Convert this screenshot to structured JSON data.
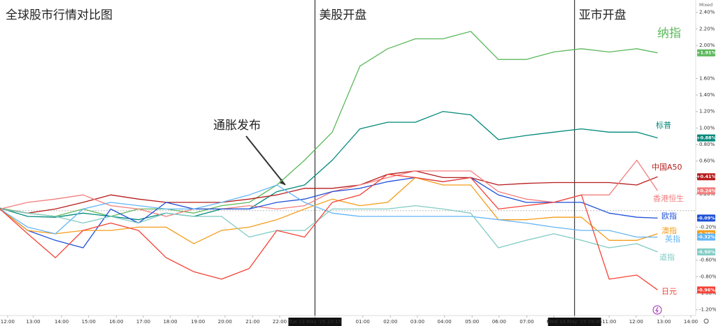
{
  "chart_data": {
    "type": "line",
    "title": "全球股市行情对比图",
    "scale_mode": "Mixed",
    "annotations": [
      {
        "text": "美股开盘",
        "x": 45.5
      },
      {
        "text": "亚市开盘",
        "x": 83.0
      },
      {
        "text": "通胀发布",
        "x": 41.2,
        "y": 0.31
      }
    ],
    "x": [
      0,
      4,
      8,
      12,
      16,
      20,
      24,
      28,
      32,
      36,
      40,
      44,
      48,
      52,
      56,
      60,
      64,
      68,
      72,
      76,
      80,
      84,
      88,
      92,
      95
    ],
    "xlim": [
      0,
      100
    ],
    "xticks": [
      {
        "value": 1.1,
        "label": "12:00"
      },
      {
        "value": 4.8,
        "label": "13:00"
      },
      {
        "value": 8.9,
        "label": "14:00"
      },
      {
        "value": 12.8,
        "label": "15:00"
      },
      {
        "value": 16.8,
        "label": "16:00"
      },
      {
        "value": 20.7,
        "label": "17:00"
      },
      {
        "value": 24.6,
        "label": "18:00"
      },
      {
        "value": 28.6,
        "label": "19:00"
      },
      {
        "value": 32.5,
        "label": "20:00"
      },
      {
        "value": 36.5,
        "label": "21:00"
      },
      {
        "value": 40.4,
        "label": "22:00"
      },
      {
        "value": 45.5,
        "label": "Tue 13 May '25  23:15"
      },
      {
        "value": 52.4,
        "label": "01:00"
      },
      {
        "value": 56.4,
        "label": "02:00"
      },
      {
        "value": 60.3,
        "label": "03:00"
      },
      {
        "value": 64.2,
        "label": "04:00"
      },
      {
        "value": 68.2,
        "label": "05:00"
      },
      {
        "value": 72.1,
        "label": "06:00"
      },
      {
        "value": 76.1,
        "label": "07:00"
      },
      {
        "value": 80.0,
        "label": "08:00"
      },
      {
        "value": 83.0,
        "label": "Wed 14 May '25  09:45"
      },
      {
        "value": 88.0,
        "label": "11:00"
      },
      {
        "value": 91.9,
        "label": "12:00"
      },
      {
        "value": 95.9,
        "label": "13:00"
      },
      {
        "value": 99.8,
        "label": "14:00"
      }
    ],
    "ylim": [
      -1.27,
      2.55
    ],
    "yticks": [
      {
        "value": 2.4,
        "label": "2.40%"
      },
      {
        "value": 2.2,
        "label": "2.20%"
      },
      {
        "value": 2.0,
        "label": "2.00%"
      },
      {
        "value": 1.6,
        "label": "1.60%"
      },
      {
        "value": 1.4,
        "label": "1.40%"
      },
      {
        "value": 1.2,
        "label": "1.20%"
      },
      {
        "value": 1.0,
        "label": "1.00%"
      },
      {
        "value": 0.8,
        "label": "0.80%"
      },
      {
        "value": 0.6,
        "label": "0.60%"
      },
      {
        "value": 0.4,
        "label": "0.40%"
      },
      {
        "value": 0.2,
        "label": "0.20%"
      },
      {
        "value": -0.2,
        "label": "-0.20%"
      },
      {
        "value": -0.6,
        "label": "-0.60%"
      },
      {
        "value": -0.8,
        "label": "-0.80%"
      },
      {
        "value": -1.0,
        "label": "-1.00%"
      },
      {
        "value": -1.2,
        "label": "-1.20%"
      }
    ],
    "series": [
      {
        "name": "纳指",
        "color": "#5cb85c",
        "values": [
          0.03,
          -0.03,
          -0.07,
          0.02,
          -0.07,
          0.02,
          0.02,
          -0.03,
          0.06,
          0.1,
          0.31,
          0.61,
          0.95,
          1.75,
          1.96,
          2.08,
          2.08,
          2.17,
          1.83,
          1.83,
          1.92,
          1.96,
          1.92,
          1.96,
          1.91
        ],
        "value_labels": [
          null,
          null,
          null,
          null,
          null,
          null,
          null,
          null,
          null,
          null,
          null,
          null,
          null,
          null,
          null,
          null,
          null,
          null,
          null,
          null,
          null,
          null,
          null,
          null,
          "+1.91%"
        ]
      },
      {
        "name": "标普",
        "color": "#00897b",
        "values": [
          0.03,
          -0.07,
          -0.08,
          -0.03,
          -0.07,
          -0.11,
          -0.03,
          -0.07,
          0.02,
          0.02,
          0.23,
          0.31,
          0.61,
          0.99,
          1.07,
          1.07,
          1.2,
          1.16,
          0.86,
          0.91,
          0.95,
          0.99,
          0.95,
          0.95,
          0.88
        ],
        "value_labels": [
          null,
          null,
          null,
          null,
          null,
          null,
          null,
          null,
          null,
          null,
          null,
          null,
          null,
          null,
          null,
          null,
          null,
          null,
          null,
          null,
          null,
          null,
          null,
          null,
          "+0.88%"
        ]
      },
      {
        "name": "中国A50",
        "color": "#b71c1c",
        "values": [
          0.02,
          -0.03,
          0.02,
          0.1,
          0.19,
          0.14,
          0.1,
          0.1,
          0.1,
          0.14,
          0.19,
          0.27,
          0.27,
          0.31,
          0.44,
          0.48,
          0.4,
          0.4,
          0.31,
          0.33,
          0.34,
          0.34,
          0.34,
          0.31,
          0.41
        ],
        "value_labels": [
          null,
          null,
          null,
          null,
          null,
          null,
          null,
          null,
          null,
          null,
          null,
          null,
          null,
          null,
          null,
          null,
          null,
          null,
          null,
          null,
          null,
          null,
          null,
          null,
          "+0.41%"
        ]
      },
      {
        "name": "香港恒生",
        "color": "#f47c7c",
        "values": [
          0.02,
          0.1,
          0.14,
          0.19,
          0.06,
          0.02,
          -0.07,
          0.02,
          0.02,
          0.06,
          0.02,
          0.06,
          0.23,
          0.31,
          0.4,
          0.48,
          0.48,
          0.48,
          0.23,
          0.14,
          0.1,
          0.19,
          0.19,
          0.61,
          0.24
        ],
        "value_labels": [
          null,
          null,
          null,
          null,
          null,
          null,
          null,
          null,
          null,
          null,
          null,
          null,
          null,
          null,
          null,
          null,
          null,
          null,
          null,
          null,
          null,
          null,
          null,
          null,
          "+0.24%"
        ]
      },
      {
        "name": "欧指",
        "color": "#1e4fd8",
        "values": [
          0.02,
          -0.24,
          -0.36,
          -0.45,
          0.02,
          -0.15,
          0.1,
          0.02,
          0.02,
          0.02,
          0.1,
          0.14,
          0.23,
          0.27,
          0.35,
          0.4,
          0.35,
          0.4,
          0.19,
          0.1,
          0.1,
          0.1,
          -0.03,
          -0.08,
          -0.09
        ],
        "value_labels": [
          null,
          null,
          null,
          null,
          null,
          null,
          null,
          null,
          null,
          null,
          null,
          null,
          null,
          null,
          null,
          null,
          null,
          null,
          null,
          null,
          null,
          null,
          null,
          null,
          "-0.09%"
        ]
      },
      {
        "name": "澳指",
        "color": "#f59c1a",
        "values": [
          0.02,
          -0.24,
          -0.28,
          -0.24,
          -0.24,
          -0.2,
          -0.2,
          -0.4,
          -0.24,
          -0.2,
          -0.11,
          0.02,
          0.14,
          0.06,
          0.1,
          0.4,
          0.31,
          0.31,
          -0.11,
          -0.11,
          -0.08,
          -0.08,
          -0.36,
          -0.36,
          -0.28
        ],
        "value_labels": [
          null,
          null,
          null,
          null,
          null,
          null,
          null,
          null,
          null,
          null,
          null,
          null,
          null,
          null,
          null,
          null,
          null,
          null,
          null,
          null,
          null,
          null,
          null,
          null,
          "-0.28%"
        ]
      },
      {
        "name": "英指",
        "color": "#64b5f6",
        "values": [
          0.02,
          -0.2,
          -0.28,
          0.02,
          0.1,
          0.06,
          0.02,
          0.02,
          0.1,
          0.19,
          0.31,
          0.1,
          -0.03,
          -0.07,
          -0.07,
          -0.07,
          -0.07,
          -0.07,
          -0.11,
          -0.15,
          -0.2,
          -0.24,
          -0.24,
          -0.32,
          -0.32
        ],
        "value_labels": [
          null,
          null,
          null,
          null,
          null,
          null,
          null,
          null,
          null,
          null,
          null,
          null,
          null,
          null,
          null,
          null,
          null,
          null,
          null,
          null,
          null,
          null,
          null,
          null,
          "-0.32%"
        ]
      },
      {
        "name": "道指",
        "color": "#80cbc4",
        "values": [
          0.02,
          -0.03,
          -0.07,
          -0.15,
          -0.07,
          -0.15,
          -0.03,
          -0.07,
          -0.07,
          -0.32,
          -0.24,
          -0.24,
          0.02,
          0.02,
          0.02,
          0.06,
          0.02,
          -0.03,
          -0.45,
          -0.36,
          -0.28,
          -0.36,
          -0.45,
          -0.4,
          -0.5
        ],
        "value_labels": [
          null,
          null,
          null,
          null,
          null,
          null,
          null,
          null,
          null,
          null,
          null,
          null,
          null,
          null,
          null,
          null,
          null,
          null,
          null,
          null,
          null,
          null,
          null,
          null,
          "-0.50%"
        ]
      },
      {
        "name": "日元",
        "color": "#f44336",
        "values": [
          0.02,
          -0.28,
          -0.57,
          -0.24,
          -0.15,
          -0.24,
          -0.57,
          -0.74,
          -0.83,
          -0.7,
          -0.24,
          -0.32,
          0.1,
          0.19,
          0.44,
          0.4,
          0.35,
          0.4,
          0.02,
          0.06,
          0.1,
          0.19,
          -0.83,
          -0.78,
          -0.96
        ],
        "value_labels": [
          null,
          null,
          null,
          null,
          null,
          null,
          null,
          null,
          null,
          null,
          null,
          null,
          null,
          null,
          null,
          null,
          null,
          null,
          null,
          null,
          null,
          null,
          null,
          null,
          "-0.96%"
        ]
      }
    ]
  }
}
